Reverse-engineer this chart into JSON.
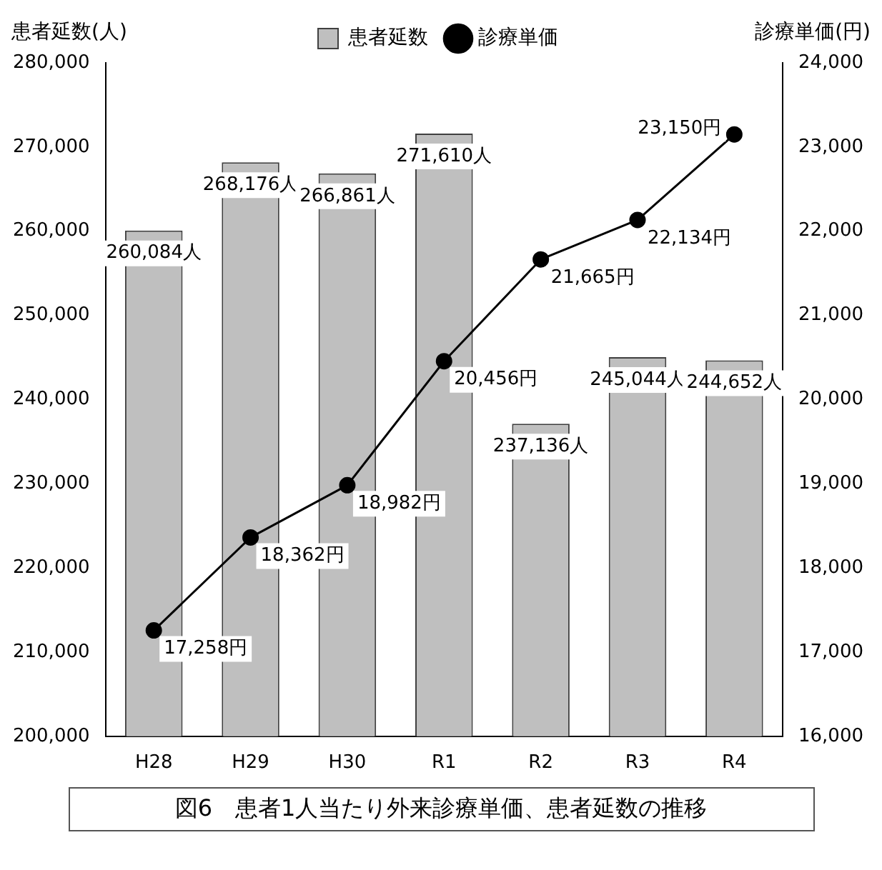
{
  "chart_data": {
    "type": "bar",
    "title": "図6　患者1人当たり外来診療単価、患者延数の推移",
    "ylabel": "患者延数(人)",
    "y2label": "診療単価(円)",
    "categories": [
      "H28",
      "H29",
      "H30",
      "R1",
      "R2",
      "R3",
      "R4"
    ],
    "series": [
      {
        "name": "患者延数",
        "color": "#bfbfbf",
        "values": [
          260084,
          268176,
          266861,
          271610,
          237136,
          245044,
          244652
        ],
        "value_labels": [
          "260,084人",
          "268,176人",
          "266,861人",
          "271,610人",
          "237,136人",
          "245,044人",
          "244,652人"
        ]
      },
      {
        "name": "診療単価",
        "type": "line",
        "axis": "y2",
        "color": "#000000",
        "marker": "circle",
        "values": [
          17258,
          18362,
          18982,
          20456,
          21665,
          22134,
          23150
        ],
        "value_labels": [
          "17,258円",
          "18,362円",
          "18,982円",
          "20,456円",
          "21,665円",
          "22,134円",
          "23,150円"
        ]
      }
    ],
    "ylim": [
      200000,
      280000
    ],
    "yticks": [
      {
        "value": 200000,
        "label": "200,000"
      },
      {
        "value": 210000,
        "label": "210,000"
      },
      {
        "value": 220000,
        "label": "220,000"
      },
      {
        "value": 230000,
        "label": "230,000"
      },
      {
        "value": 240000,
        "label": "240,000"
      },
      {
        "value": 250000,
        "label": "250,000"
      },
      {
        "value": 260000,
        "label": "260,000"
      },
      {
        "value": 270000,
        "label": "270,000"
      },
      {
        "value": 280000,
        "label": "280,000"
      }
    ],
    "y2lim": [
      16000,
      24000
    ],
    "y2ticks": [
      {
        "value": 16000,
        "label": "16,000"
      },
      {
        "value": 17000,
        "label": "17,000"
      },
      {
        "value": 18000,
        "label": "18,000"
      },
      {
        "value": 19000,
        "label": "19,000"
      },
      {
        "value": 20000,
        "label": "20,000"
      },
      {
        "value": 21000,
        "label": "21,000"
      },
      {
        "value": 22000,
        "label": "22,000"
      },
      {
        "value": 23000,
        "label": "23,000"
      },
      {
        "value": 24000,
        "label": "24,000"
      }
    ],
    "grid": false,
    "legend": "top"
  }
}
